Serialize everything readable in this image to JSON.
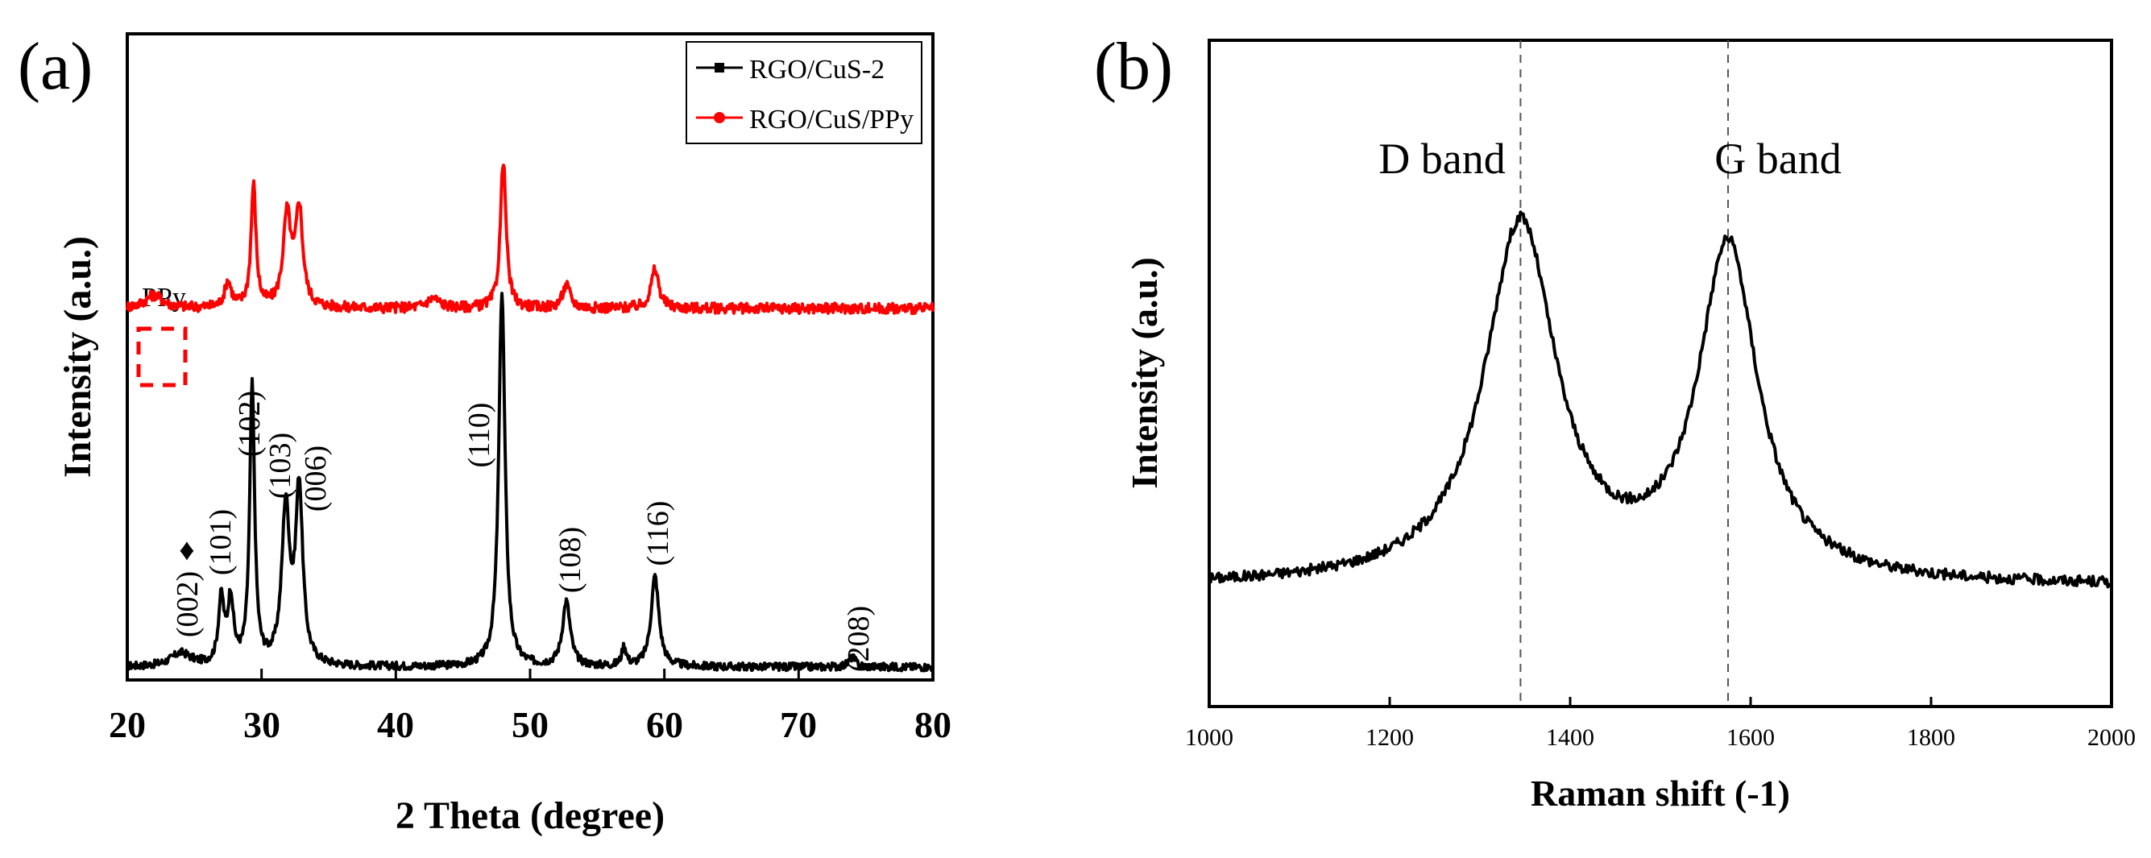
{
  "chart_data": [
    {
      "panel_label": "(a)",
      "type": "line",
      "xlabel": "2 Theta (degree)",
      "ylabel": "Intensity (a.u.)",
      "xlim": [
        20,
        80
      ],
      "ylim": [
        0,
        1
      ],
      "xticks": [
        "20",
        "30",
        "40",
        "50",
        "60",
        "70",
        "80"
      ],
      "legend": {
        "position": "top-right",
        "entries": [
          {
            "label": "RGO/CuS-2",
            "color": "#000000"
          },
          {
            "label": "RGO/CuS/PPy",
            "color": "#ff0000"
          }
        ]
      },
      "series": [
        {
          "name": "RGO/CuS-2",
          "color": "#000000",
          "baseline": 0.02,
          "peaks": [
            {
              "x": 24.0,
              "h": 0.02,
              "w": 0.9
            },
            {
              "x": 27.0,
              "h": 0.1,
              "w": 0.25
            },
            {
              "x": 27.7,
              "h": 0.1,
              "w": 0.25
            },
            {
              "x": 29.3,
              "h": 0.43,
              "w": 0.22
            },
            {
              "x": 31.8,
              "h": 0.24,
              "w": 0.35
            },
            {
              "x": 32.8,
              "h": 0.27,
              "w": 0.32
            },
            {
              "x": 47.9,
              "h": 0.58,
              "w": 0.28
            },
            {
              "x": 52.7,
              "h": 0.1,
              "w": 0.35
            },
            {
              "x": 57.0,
              "h": 0.03,
              "w": 0.2
            },
            {
              "x": 59.3,
              "h": 0.14,
              "w": 0.35
            },
            {
              "x": 74.0,
              "h": 0.015,
              "w": 0.3
            }
          ]
        },
        {
          "name": "RGO/CuS/PPy",
          "color": "#ff0000",
          "baseline": 0.575,
          "peaks": [
            {
              "x": 22.0,
              "h": 0.02,
              "w": 0.8
            },
            {
              "x": 27.5,
              "h": 0.04,
              "w": 0.3
            },
            {
              "x": 29.4,
              "h": 0.19,
              "w": 0.22
            },
            {
              "x": 31.9,
              "h": 0.14,
              "w": 0.35
            },
            {
              "x": 32.8,
              "h": 0.15,
              "w": 0.32
            },
            {
              "x": 42.8,
              "h": 0.015,
              "w": 0.6
            },
            {
              "x": 48.0,
              "h": 0.23,
              "w": 0.25
            },
            {
              "x": 52.7,
              "h": 0.035,
              "w": 0.35
            },
            {
              "x": 59.3,
              "h": 0.06,
              "w": 0.35
            }
          ]
        }
      ],
      "annotations": [
        {
          "text": "(002)",
          "x": 24.5
        },
        {
          "text": "(101)",
          "x": 27.2
        },
        {
          "text": "(102)",
          "x": 29.3
        },
        {
          "text": "(103)",
          "x": 31.7
        },
        {
          "text": "(006)",
          "x": 33.8
        },
        {
          "text": "(110)",
          "x": 46.5
        },
        {
          "text": "(108)",
          "x": 52.8
        },
        {
          "text": "(116)",
          "x": 59.5
        },
        {
          "text": "(208)",
          "x": 74.0
        }
      ],
      "marker_symbol": "♦",
      "ppy_label": "PPy"
    },
    {
      "panel_label": "(b)",
      "type": "line",
      "xlabel": "Raman shift (-1)",
      "ylabel": "Intensity (a.u.)",
      "xlim": [
        1000,
        2000
      ],
      "ylim": [
        0,
        1
      ],
      "xticks": [
        "1000",
        "1200",
        "1400",
        "1600",
        "1800",
        "2000"
      ],
      "series": [
        {
          "name": "Raman",
          "color": "#000000",
          "baseline": 0.18,
          "peaks": [
            {
              "x": 1345,
              "h": 0.54,
              "w": 48
            },
            {
              "x": 1575,
              "h": 0.5,
              "w": 40
            }
          ]
        }
      ],
      "annotations": [
        {
          "text": "D band",
          "x": 1345
        },
        {
          "text": "G band",
          "x": 1575
        }
      ]
    }
  ]
}
